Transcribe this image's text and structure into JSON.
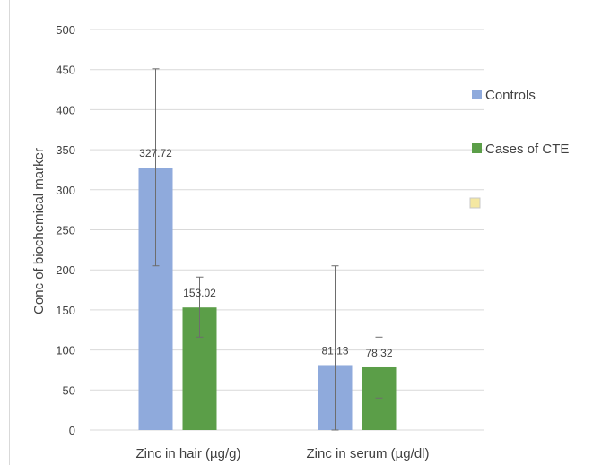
{
  "chart_data": {
    "type": "bar",
    "title": "",
    "xlabel": "",
    "ylabel": "Conc of biochemical marker",
    "ylim": [
      0,
      500
    ],
    "ytick_step": 50,
    "yticks": [
      "0",
      "50",
      "100",
      "150",
      "200",
      "250",
      "300",
      "350",
      "400",
      "450",
      "500"
    ],
    "grid": true,
    "legend_position": "right",
    "categories": [
      "Zinc in hair  (µg/g)",
      "Zinc in serum (µg/dl)"
    ],
    "series": [
      {
        "name": "Controls",
        "color": "#8faadc",
        "values": [
          327.72,
          81.13
        ],
        "labels": [
          "327.72",
          "81.13"
        ],
        "error_low": [
          205,
          0
        ],
        "error_high": [
          451,
          205
        ]
      },
      {
        "name": "Cases of CTE",
        "color": "#5b9e48",
        "values": [
          153.02,
          78.32
        ],
        "labels": [
          "153.02",
          "78.32"
        ],
        "error_low": [
          116,
          40
        ],
        "error_high": [
          191,
          116
        ]
      }
    ]
  },
  "colors": {
    "grid": "#d9d9d9",
    "axis_text": "#404040",
    "error_bar": "#6d6d6d",
    "stray_marker": "#f4e7a1"
  }
}
